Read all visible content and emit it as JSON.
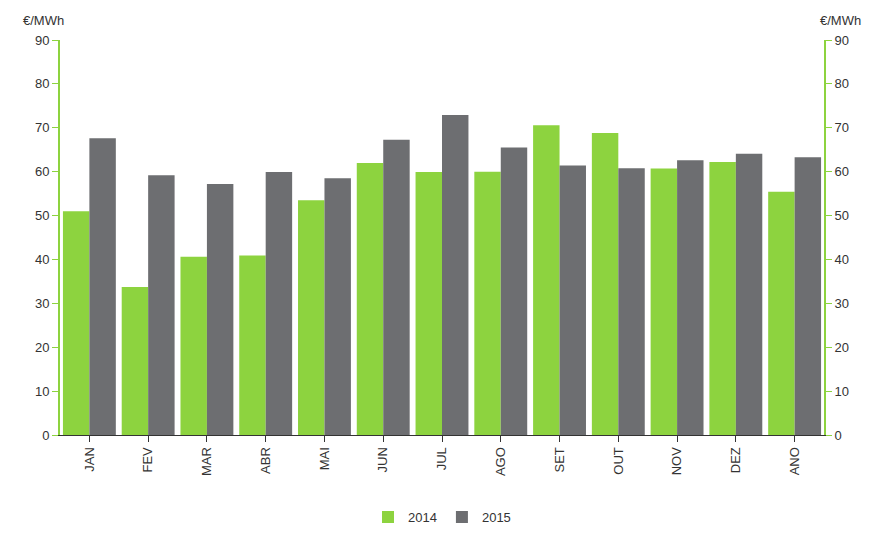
{
  "chart_data": {
    "type": "bar",
    "categories": [
      "JAN",
      "FEV",
      "MAR",
      "ABR",
      "MAI",
      "JUN",
      "JUL",
      "AGO",
      "SET",
      "OUT",
      "NOV",
      "DEZ",
      "ANO"
    ],
    "series": [
      {
        "name": "2014",
        "color": "#8dd33f",
        "values": [
          51,
          33.7,
          40.6,
          40.9,
          53.5,
          62,
          59.9,
          60,
          70.6,
          68.8,
          60.7,
          62.2,
          55.4
        ]
      },
      {
        "name": "2015",
        "color": "#6d6e71",
        "values": [
          67.6,
          59.2,
          57.2,
          59.9,
          58.5,
          67.3,
          72.9,
          65.5,
          61.4,
          60.8,
          62.6,
          64.1,
          63.3
        ]
      }
    ],
    "y_label": "€/MWh",
    "y2_label": "€/MWh",
    "ylim": [
      0,
      90
    ],
    "yticks": [
      0,
      10,
      20,
      30,
      40,
      50,
      60,
      70,
      80,
      90
    ],
    "y2lim": [
      0,
      90
    ],
    "y2ticks": [
      0,
      10,
      20,
      30,
      40,
      50,
      60,
      70,
      80,
      90
    ],
    "grid": false,
    "legend": "bottom"
  }
}
